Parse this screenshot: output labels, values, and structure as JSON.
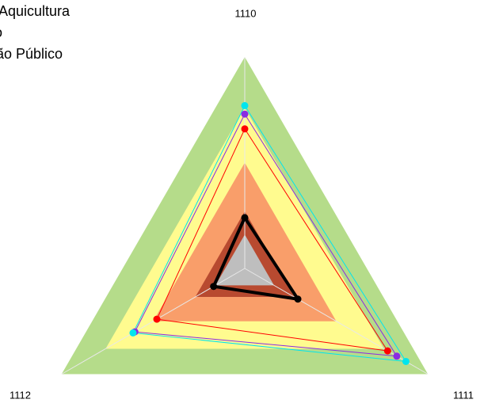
{
  "chart_data": {
    "type": "radar",
    "categories": [
      "1110",
      "1111",
      "1112"
    ],
    "ylim": [
      0,
      100
    ],
    "bands": [
      {
        "value": 100,
        "color": "#b5dc8a"
      },
      {
        "value": 76,
        "color": "#fffb8f"
      },
      {
        "value": 50,
        "color": "#f99e6a"
      },
      {
        "value": 27,
        "color": "#b84a30"
      },
      {
        "value": 16,
        "color": "#bebebe"
      }
    ],
    "series": [
      {
        "name": "Aquicultura",
        "color": "#ff0000",
        "values": [
          66,
          78,
          48
        ],
        "width": 1
      },
      {
        "name": "io",
        "color": "#8a2be2",
        "values": [
          73,
          83,
          60
        ],
        "width": 1
      },
      {
        "name": "ão Público",
        "color": "#00e5ee",
        "values": [
          77,
          88,
          61
        ],
        "width": 1
      },
      {
        "color": "#000000",
        "values": [
          24,
          29,
          17
        ],
        "width": 4
      }
    ]
  }
}
